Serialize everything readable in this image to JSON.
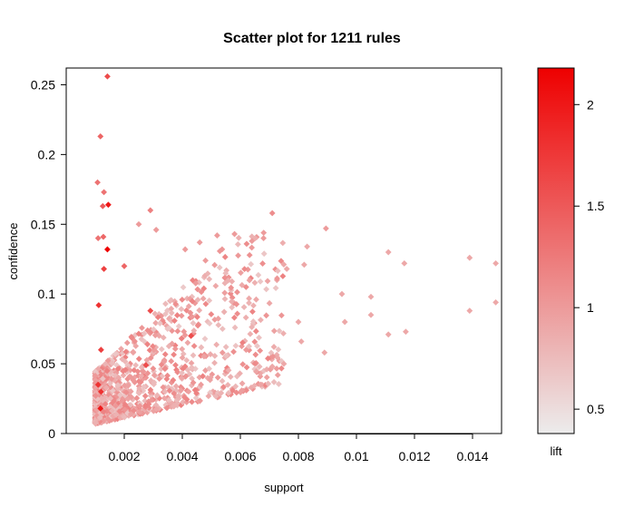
{
  "chart_data": {
    "type": "scatter",
    "title": "Scatter plot for 1211 rules",
    "xlabel": "support",
    "ylabel": "confidence",
    "xlim": [
      0.0,
      0.015
    ],
    "ylim": [
      0.0,
      0.262
    ],
    "x_ticks": [
      0.002,
      0.004,
      0.006,
      0.008,
      0.01,
      0.012,
      0.014
    ],
    "x_tick_labels": [
      "0.002",
      "0.004",
      "0.006",
      "0.008",
      "0.01",
      "0.012",
      "0.014"
    ],
    "y_ticks": [
      0,
      0.05,
      0.1,
      0.15,
      0.2,
      0.25
    ],
    "y_tick_labels": [
      "0",
      "0.05",
      "0.1",
      "0.15",
      "0.2",
      "0.25"
    ],
    "grid": false,
    "legend": {
      "title": "lift",
      "type": "color-gradient",
      "placement": "right",
      "range": [
        0.38,
        2.18
      ],
      "ticks": [
        0.5,
        1,
        1.5,
        2
      ],
      "tick_labels": [
        "0.5",
        "1",
        "1.5",
        "2"
      ],
      "color_low": "#ececec",
      "color_high": "#ee0000"
    },
    "n_rules": 1211,
    "marker": "diamond",
    "points": [
      [
        0.00142,
        0.256,
        1.6
      ],
      [
        0.00118,
        0.213,
        1.4
      ],
      [
        0.00108,
        0.18,
        1.3
      ],
      [
        0.0013,
        0.173,
        1.3
      ],
      [
        0.00145,
        0.164,
        2.0
      ],
      [
        0.00126,
        0.163,
        1.5
      ],
      [
        0.0029,
        0.16,
        1.2
      ],
      [
        0.0071,
        0.158,
        1.1
      ],
      [
        0.00128,
        0.141,
        1.4
      ],
      [
        0.0011,
        0.14,
        1.3
      ],
      [
        0.00142,
        0.132,
        2.2
      ],
      [
        0.00895,
        0.147,
        1.0
      ],
      [
        0.0052,
        0.142,
        1.0
      ],
      [
        0.0058,
        0.143,
        1.0
      ],
      [
        0.0064,
        0.138,
        1.0
      ],
      [
        0.0068,
        0.14,
        1.0
      ],
      [
        0.0083,
        0.134,
        0.9
      ],
      [
        0.0111,
        0.13,
        0.9
      ],
      [
        0.0139,
        0.126,
        0.9
      ],
      [
        0.0148,
        0.122,
        0.9
      ],
      [
        0.01165,
        0.122,
        0.9
      ],
      [
        0.0082,
        0.121,
        0.9
      ],
      [
        0.0076,
        0.118,
        0.9
      ],
      [
        0.0095,
        0.1,
        0.9
      ],
      [
        0.0105,
        0.098,
        0.9
      ],
      [
        0.0148,
        0.094,
        0.9
      ],
      [
        0.0139,
        0.088,
        0.9
      ],
      [
        0.0105,
        0.085,
        0.9
      ],
      [
        0.0096,
        0.08,
        0.9
      ],
      [
        0.0117,
        0.073,
        0.9
      ],
      [
        0.0111,
        0.071,
        0.9
      ],
      [
        0.0089,
        0.058,
        0.9
      ],
      [
        0.0081,
        0.066,
        0.9
      ],
      [
        0.008,
        0.08,
        0.9
      ],
      [
        0.0071,
        0.048,
        0.9
      ],
      [
        0.0075,
        0.05,
        0.9
      ],
      [
        0.0025,
        0.15,
        1.0
      ],
      [
        0.0031,
        0.146,
        1.0
      ],
      [
        0.0041,
        0.132,
        1.0
      ],
      [
        0.0046,
        0.137,
        1.0
      ],
      [
        0.0048,
        0.124,
        1.0
      ],
      [
        0.0029,
        0.088,
        1.6
      ],
      [
        0.0013,
        0.118,
        1.7
      ],
      [
        0.002,
        0.12,
        1.4
      ],
      [
        0.00275,
        0.049,
        1.6
      ],
      [
        0.00112,
        0.092,
        1.8
      ],
      [
        0.0012,
        0.06,
        1.7
      ],
      [
        0.0012,
        0.03,
        1.8
      ],
      [
        0.00118,
        0.018,
        2.0
      ],
      [
        0.0011,
        0.035,
        1.8
      ],
      [
        0.0043,
        0.07,
        1.6
      ],
      [
        0.0062,
        0.06,
        1.0
      ]
    ],
    "bulk_cloud": {
      "count": 1159,
      "seed": 1211,
      "support_min": 0.001,
      "support_mode": 0.0012,
      "support_max": 0.0075,
      "confidence_min": 0.007,
      "confidence_max": 0.145,
      "lift_min": 0.4,
      "lift_max": 1.6
    }
  }
}
